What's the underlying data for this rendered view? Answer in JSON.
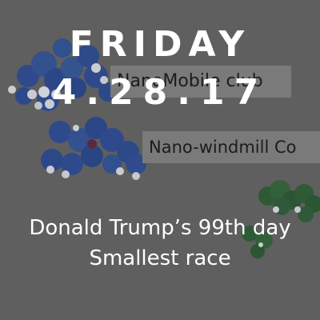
{
  "card": {
    "day": "FRIDAY",
    "date": "4.28.17",
    "line1": "Donald Trump’s 99th day",
    "line2": "Smallest race"
  },
  "background": {
    "label1": "NanoMobile club",
    "label2": "Nano-windmill Co",
    "molecule_colors": {
      "blue": "#2f4a8c",
      "white": "#c9ccd2",
      "green": "#2f5a36"
    }
  }
}
